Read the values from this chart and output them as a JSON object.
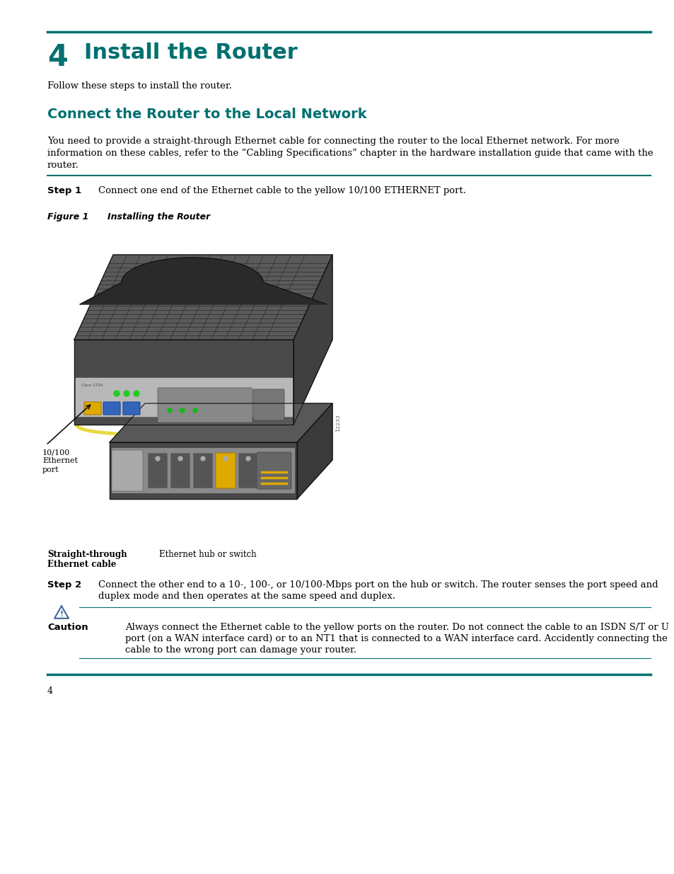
{
  "bg_color": "#ffffff",
  "teal_color": "#007070",
  "line_color": "#007070",
  "text_color": "#000000",
  "page_number": "4",
  "chapter_number": "4",
  "chapter_title": "Install the Router",
  "chapter_subtitle": "Follow these steps to install the router.",
  "section_title": "Connect the Router to the Local Network",
  "section_body_1": "You need to provide a straight-through Ethernet cable for connecting the router to the local Ethernet network. For more",
  "section_body_2": "information on these cables, refer to the “Cabling Specifications” chapter in the hardware installation guide that came with the",
  "section_body_3": "router.",
  "step1_label": "Step 1",
  "step1_text": "Connect one end of the Ethernet cable to the yellow 10/100 ETHERNET port.",
  "figure_label": "Figure 1",
  "figure_title": "Installing the Router",
  "label_ethernet_port": "10/100\nEthernet\nport",
  "label_straight_1": "Straight-through",
  "label_straight_2": "Ethernet cable",
  "label_hub": "Ethernet hub or switch",
  "step2_label": "Step 2",
  "step2_text_1": "Connect the other end to a 10-, 100-, or 10/100-Mbps port on the hub or switch. The router senses the port speed and",
  "step2_text_2": "duplex mode and then operates at the same speed and duplex.",
  "caution_label": "Caution",
  "caution_text_1": "Always connect the Ethernet cable to the yellow ports on the router. Do not connect the cable to an ISDN S/T or U",
  "caution_text_2": "port (on a WAN interface card) or to an NT1 that is connected to a WAN interface card. Accidently connecting the",
  "caution_text_3": "cable to the wrong port can damage your router.",
  "fig_code": "12233"
}
